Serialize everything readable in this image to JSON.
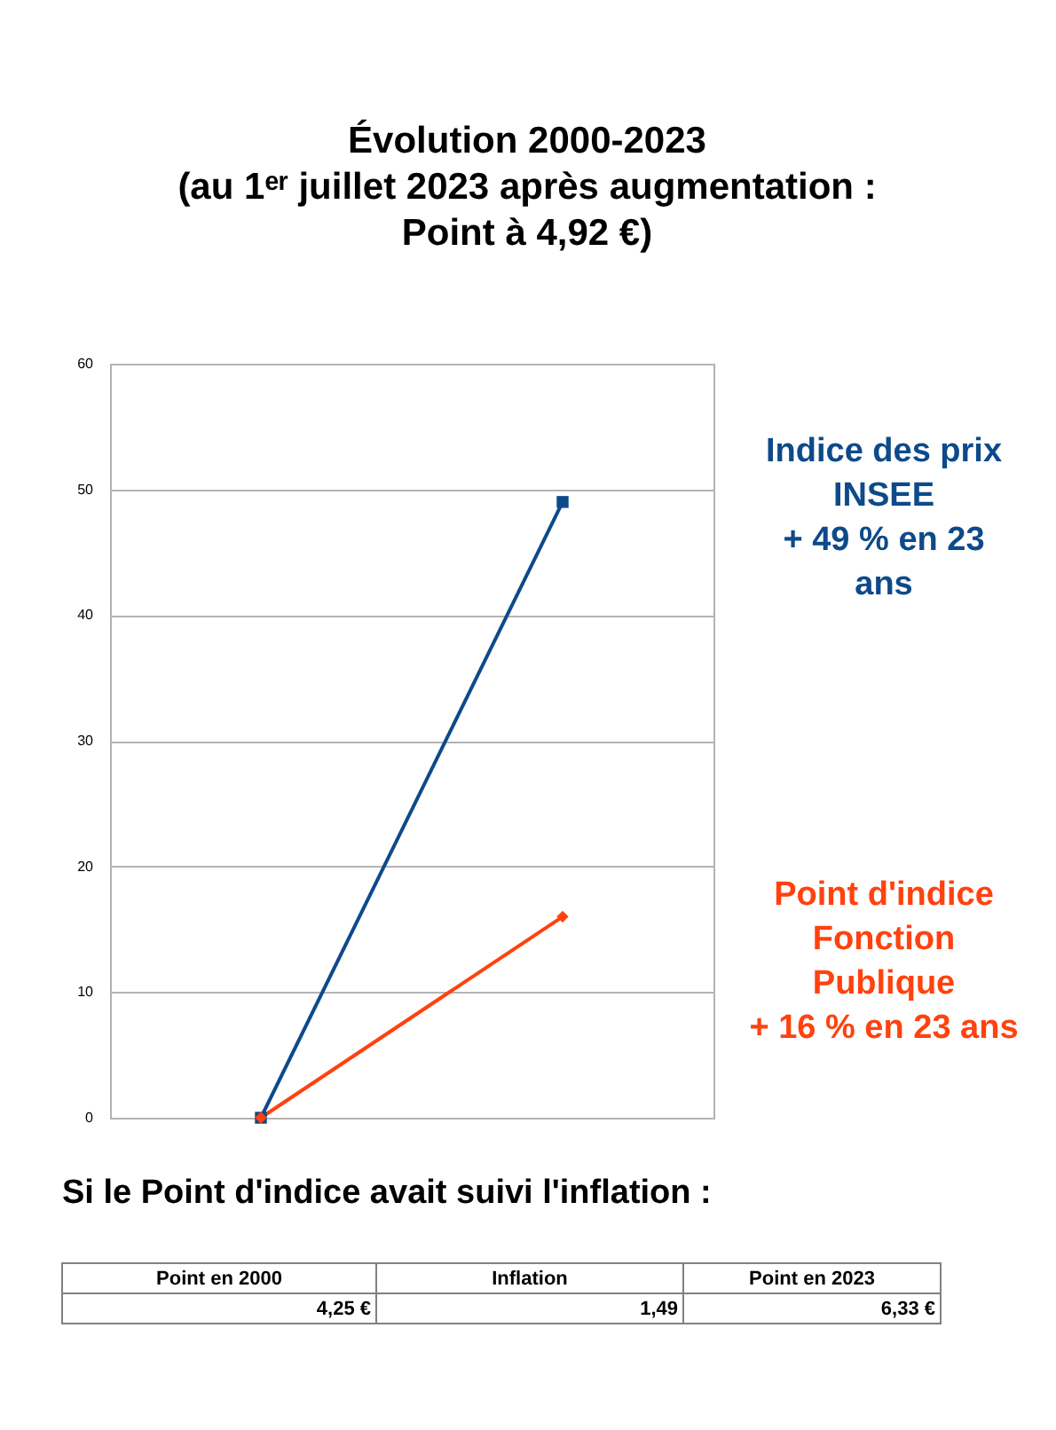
{
  "chart_data": {
    "type": "line",
    "title": "Évolution 2000-2023\n(au 1ᵉʳ juillet 2023 après augmentation :\nPoint à 4,92 €)",
    "categories": [
      null,
      null
    ],
    "series": [
      {
        "name": "Indice des prix\nINSEE\n+ 49 % en 23\nans",
        "color": "#0d4a8a",
        "marker": "square",
        "values": [
          0,
          49
        ]
      },
      {
        "name": "Point d'indice\nFonction\nPublique\n+ 16 % en 23 ans",
        "color": "#ff420e",
        "marker": "diamond",
        "values": [
          0,
          16
        ]
      }
    ],
    "ylim": [
      0,
      60
    ],
    "yticks": [
      0,
      10,
      20,
      30,
      40,
      50,
      60
    ],
    "grid": "y",
    "legend": "right",
    "tick_labels": "y",
    "line_style": "solid",
    "annotations": [
      "Si le Point d'indice avait suivi l'inflation :",
      "Point en 2000",
      "Inflation",
      "Point en 2023",
      "4,25 €",
      "1,49",
      "6,33 €"
    ]
  }
}
